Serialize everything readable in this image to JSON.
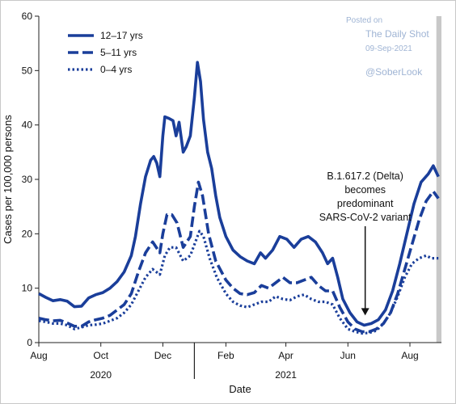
{
  "watermark": {
    "posted": "Posted on",
    "source": "The Daily Shot",
    "date": "09-Sep-2021",
    "handle": "@SoberLook"
  },
  "chart_data": {
    "type": "line",
    "xlabel": "Date",
    "ylabel": "Cases per 100,000 persons",
    "ylim": [
      0,
      60
    ],
    "yticks": [
      0,
      10,
      20,
      30,
      40,
      50,
      60
    ],
    "xlim": [
      "2020-08-01",
      "2021-09-01"
    ],
    "xticks": [
      {
        "date": "2020-08-01",
        "label": "Aug"
      },
      {
        "date": "2020-10-01",
        "label": "Oct"
      },
      {
        "date": "2020-12-01",
        "label": "Dec"
      },
      {
        "date": "2021-02-01",
        "label": "Feb"
      },
      {
        "date": "2021-04-01",
        "label": "Apr"
      },
      {
        "date": "2021-06-01",
        "label": "Jun"
      },
      {
        "date": "2021-08-01",
        "label": "Aug"
      }
    ],
    "year_labels": [
      {
        "label": "2020",
        "date": "2020-10-01"
      },
      {
        "label": "2021",
        "date": "2021-04-01"
      }
    ],
    "year_divider": "2021-01-01",
    "legend_position": "top-left",
    "shaded_region": {
      "from": "2021-08-27",
      "to": "2021-09-01",
      "color": "#c8c8c8"
    },
    "series": [
      {
        "name": "12–17 yrs",
        "style": "solid",
        "color": "#1a3e9a",
        "points": [
          [
            "2020-08-01",
            9.0
          ],
          [
            "2020-08-08",
            8.3
          ],
          [
            "2020-08-15",
            7.7
          ],
          [
            "2020-08-22",
            7.9
          ],
          [
            "2020-08-29",
            7.6
          ],
          [
            "2020-09-05",
            6.6
          ],
          [
            "2020-09-12",
            6.7
          ],
          [
            "2020-09-19",
            8.2
          ],
          [
            "2020-09-26",
            8.8
          ],
          [
            "2020-10-03",
            9.2
          ],
          [
            "2020-10-10",
            10.0
          ],
          [
            "2020-10-17",
            11.2
          ],
          [
            "2020-10-24",
            13.0
          ],
          [
            "2020-10-31",
            16.0
          ],
          [
            "2020-11-04",
            19.5
          ],
          [
            "2020-11-09",
            25.5
          ],
          [
            "2020-11-14",
            30.5
          ],
          [
            "2020-11-19",
            33.5
          ],
          [
            "2020-11-22",
            34.2
          ],
          [
            "2020-11-25",
            33.0
          ],
          [
            "2020-11-28",
            30.5
          ],
          [
            "2020-12-01",
            38.0
          ],
          [
            "2020-12-03",
            41.5
          ],
          [
            "2020-12-07",
            41.2
          ],
          [
            "2020-12-11",
            40.8
          ],
          [
            "2020-12-14",
            38.0
          ],
          [
            "2020-12-17",
            40.5
          ],
          [
            "2020-12-21",
            35.0
          ],
          [
            "2020-12-24",
            36.0
          ],
          [
            "2020-12-28",
            38.0
          ],
          [
            "2021-01-01",
            45.0
          ],
          [
            "2021-01-04",
            51.5
          ],
          [
            "2021-01-07",
            48.0
          ],
          [
            "2021-01-10",
            41.0
          ],
          [
            "2021-01-14",
            35.0
          ],
          [
            "2021-01-18",
            32.0
          ],
          [
            "2021-01-22",
            27.0
          ],
          [
            "2021-01-26",
            23.0
          ],
          [
            "2021-02-01",
            19.5
          ],
          [
            "2021-02-08",
            17.0
          ],
          [
            "2021-02-15",
            15.8
          ],
          [
            "2021-02-22",
            15.0
          ],
          [
            "2021-03-01",
            14.5
          ],
          [
            "2021-03-07",
            16.5
          ],
          [
            "2021-03-12",
            15.5
          ],
          [
            "2021-03-19",
            17.0
          ],
          [
            "2021-03-26",
            19.5
          ],
          [
            "2021-04-02",
            19.0
          ],
          [
            "2021-04-09",
            17.5
          ],
          [
            "2021-04-16",
            19.0
          ],
          [
            "2021-04-23",
            19.5
          ],
          [
            "2021-04-30",
            18.5
          ],
          [
            "2021-05-07",
            16.5
          ],
          [
            "2021-05-12",
            14.5
          ],
          [
            "2021-05-17",
            15.5
          ],
          [
            "2021-05-22",
            12.0
          ],
          [
            "2021-05-27",
            8.0
          ],
          [
            "2021-06-03",
            5.5
          ],
          [
            "2021-06-10",
            3.8
          ],
          [
            "2021-06-17",
            3.2
          ],
          [
            "2021-06-24",
            3.5
          ],
          [
            "2021-07-01",
            4.2
          ],
          [
            "2021-07-08",
            6.0
          ],
          [
            "2021-07-15",
            9.5
          ],
          [
            "2021-07-22",
            14.5
          ],
          [
            "2021-07-29",
            20.0
          ],
          [
            "2021-08-05",
            25.5
          ],
          [
            "2021-08-12",
            29.5
          ],
          [
            "2021-08-19",
            31.0
          ],
          [
            "2021-08-24",
            32.5
          ],
          [
            "2021-08-29",
            30.5
          ]
        ]
      },
      {
        "name": "5–11 yrs",
        "style": "dashed",
        "color": "#1a3e9a",
        "points": [
          [
            "2020-08-01",
            4.5
          ],
          [
            "2020-08-08",
            4.2
          ],
          [
            "2020-08-15",
            4.0
          ],
          [
            "2020-08-22",
            4.1
          ],
          [
            "2020-08-29",
            3.6
          ],
          [
            "2020-09-05",
            3.0
          ],
          [
            "2020-09-12",
            3.0
          ],
          [
            "2020-09-19",
            3.8
          ],
          [
            "2020-09-26",
            4.2
          ],
          [
            "2020-10-03",
            4.5
          ],
          [
            "2020-10-10",
            5.0
          ],
          [
            "2020-10-17",
            6.0
          ],
          [
            "2020-10-24",
            7.0
          ],
          [
            "2020-10-31",
            9.0
          ],
          [
            "2020-11-07",
            13.0
          ],
          [
            "2020-11-14",
            16.5
          ],
          [
            "2020-11-21",
            18.5
          ],
          [
            "2020-11-28",
            16.5
          ],
          [
            "2020-12-01",
            20.0
          ],
          [
            "2020-12-05",
            23.5
          ],
          [
            "2020-12-10",
            23.5
          ],
          [
            "2020-12-15",
            22.0
          ],
          [
            "2020-12-21",
            17.5
          ],
          [
            "2020-12-28",
            19.5
          ],
          [
            "2021-01-01",
            25.0
          ],
          [
            "2021-01-05",
            29.5
          ],
          [
            "2021-01-09",
            27.0
          ],
          [
            "2021-01-15",
            20.0
          ],
          [
            "2021-01-22",
            15.0
          ],
          [
            "2021-02-01",
            11.5
          ],
          [
            "2021-02-08",
            10.0
          ],
          [
            "2021-02-15",
            9.0
          ],
          [
            "2021-02-22",
            8.8
          ],
          [
            "2021-03-01",
            9.2
          ],
          [
            "2021-03-08",
            10.5
          ],
          [
            "2021-03-15",
            10.0
          ],
          [
            "2021-03-22",
            11.0
          ],
          [
            "2021-03-29",
            12.0
          ],
          [
            "2021-04-05",
            11.0
          ],
          [
            "2021-04-12",
            11.0
          ],
          [
            "2021-04-19",
            11.5
          ],
          [
            "2021-04-26",
            12.0
          ],
          [
            "2021-05-03",
            10.5
          ],
          [
            "2021-05-10",
            9.5
          ],
          [
            "2021-05-17",
            9.5
          ],
          [
            "2021-05-24",
            6.5
          ],
          [
            "2021-06-01",
            3.8
          ],
          [
            "2021-06-08",
            2.5
          ],
          [
            "2021-06-15",
            2.0
          ],
          [
            "2021-06-22",
            2.0
          ],
          [
            "2021-06-29",
            2.5
          ],
          [
            "2021-07-06",
            3.5
          ],
          [
            "2021-07-13",
            5.5
          ],
          [
            "2021-07-20",
            9.0
          ],
          [
            "2021-07-27",
            13.5
          ],
          [
            "2021-08-03",
            18.0
          ],
          [
            "2021-08-10",
            22.5
          ],
          [
            "2021-08-17",
            26.0
          ],
          [
            "2021-08-24",
            27.8
          ],
          [
            "2021-08-29",
            26.5
          ]
        ]
      },
      {
        "name": "0–4 yrs",
        "style": "dotted",
        "color": "#1a3e9a",
        "points": [
          [
            "2020-08-01",
            4.0
          ],
          [
            "2020-08-08",
            3.8
          ],
          [
            "2020-08-15",
            3.5
          ],
          [
            "2020-08-22",
            3.5
          ],
          [
            "2020-08-29",
            3.2
          ],
          [
            "2020-09-05",
            2.5
          ],
          [
            "2020-09-12",
            2.8
          ],
          [
            "2020-09-19",
            3.2
          ],
          [
            "2020-09-26",
            3.3
          ],
          [
            "2020-10-03",
            3.5
          ],
          [
            "2020-10-10",
            4.0
          ],
          [
            "2020-10-17",
            4.5
          ],
          [
            "2020-10-24",
            5.5
          ],
          [
            "2020-10-31",
            7.0
          ],
          [
            "2020-11-07",
            9.5
          ],
          [
            "2020-11-14",
            12.0
          ],
          [
            "2020-11-21",
            13.5
          ],
          [
            "2020-11-28",
            12.5
          ],
          [
            "2020-12-03",
            16.0
          ],
          [
            "2020-12-08",
            17.5
          ],
          [
            "2020-12-14",
            17.5
          ],
          [
            "2020-12-21",
            15.0
          ],
          [
            "2020-12-28",
            16.0
          ],
          [
            "2021-01-01",
            18.0
          ],
          [
            "2021-01-06",
            20.5
          ],
          [
            "2021-01-10",
            19.5
          ],
          [
            "2021-01-16",
            15.5
          ],
          [
            "2021-01-23",
            12.0
          ],
          [
            "2021-02-01",
            9.0
          ],
          [
            "2021-02-08",
            7.5
          ],
          [
            "2021-02-15",
            6.8
          ],
          [
            "2021-02-22",
            6.5
          ],
          [
            "2021-03-01",
            7.0
          ],
          [
            "2021-03-08",
            7.5
          ],
          [
            "2021-03-15",
            7.5
          ],
          [
            "2021-03-22",
            8.5
          ],
          [
            "2021-03-29",
            8.0
          ],
          [
            "2021-04-05",
            7.8
          ],
          [
            "2021-04-12",
            8.5
          ],
          [
            "2021-04-19",
            8.8
          ],
          [
            "2021-04-26",
            8.0
          ],
          [
            "2021-05-03",
            7.5
          ],
          [
            "2021-05-10",
            7.5
          ],
          [
            "2021-05-17",
            7.0
          ],
          [
            "2021-05-24",
            4.5
          ],
          [
            "2021-06-01",
            2.5
          ],
          [
            "2021-06-08",
            2.0
          ],
          [
            "2021-06-15",
            1.7
          ],
          [
            "2021-06-22",
            1.8
          ],
          [
            "2021-06-29",
            2.2
          ],
          [
            "2021-07-06",
            3.5
          ],
          [
            "2021-07-13",
            5.5
          ],
          [
            "2021-07-20",
            8.5
          ],
          [
            "2021-07-27",
            12.0
          ],
          [
            "2021-08-03",
            14.5
          ],
          [
            "2021-08-10",
            15.5
          ],
          [
            "2021-08-17",
            16.0
          ],
          [
            "2021-08-22",
            15.5
          ],
          [
            "2021-08-29",
            15.5
          ]
        ]
      }
    ],
    "annotation": {
      "lines": [
        "B.1.617.2 (Delta)",
        "becomes",
        "predominant",
        "SARS-CoV-2 variant"
      ],
      "arrow_date": "2021-06-18",
      "arrow_value": 5
    }
  }
}
